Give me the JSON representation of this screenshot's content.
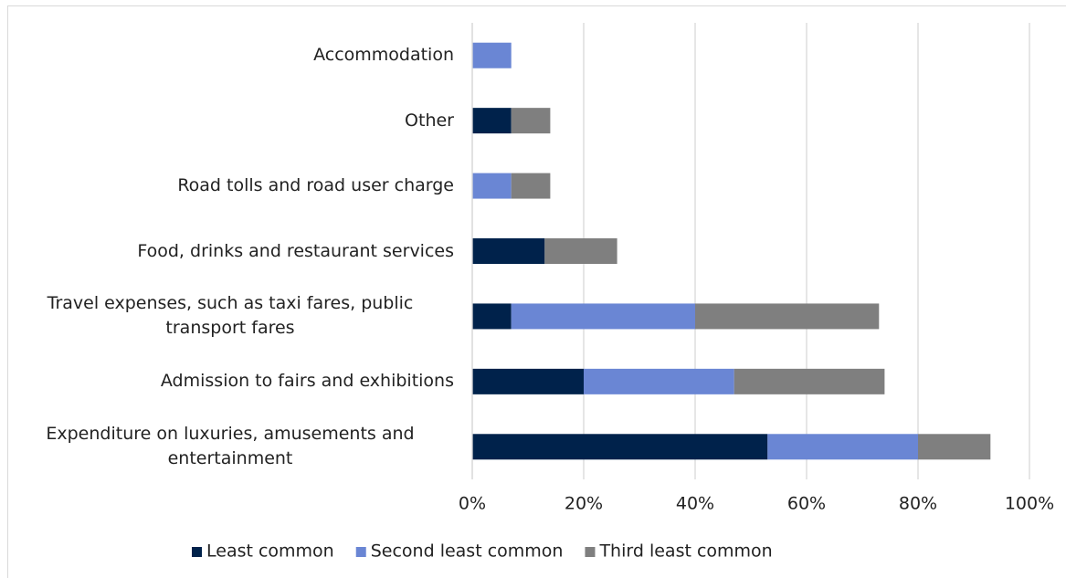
{
  "chart_data": {
    "type": "stacked-barh",
    "categories": [
      "Accommodation",
      "Other",
      "Road tolls and road user charge",
      "Food, drinks and restaurant services",
      "Travel expenses, such as taxi fares, public transport fares",
      "Admission to fairs and exhibitions",
      "Expenditure on luxuries, amusements and entertainment"
    ],
    "series": [
      {
        "name": "Least common",
        "color": "#00224b",
        "values": [
          0,
          7,
          0,
          13,
          7,
          20,
          53
        ]
      },
      {
        "name": "Second least common",
        "color": "#6a86d4",
        "values": [
          7,
          0,
          7,
          0,
          33,
          27,
          27
        ]
      },
      {
        "name": "Third least common",
        "color": "#7f7f7f",
        "values": [
          0,
          7,
          7,
          13,
          33,
          27,
          13
        ]
      }
    ],
    "xlim": [
      0,
      100
    ],
    "xticks": [
      {
        "value": 0,
        "label": "0%"
      },
      {
        "value": 20,
        "label": "20%"
      },
      {
        "value": 40,
        "label": "40%"
      },
      {
        "value": 60,
        "label": "60%"
      },
      {
        "value": 80,
        "label": "80%"
      },
      {
        "value": 100,
        "label": "100%"
      }
    ],
    "grid": true,
    "legend": "bottom"
  }
}
